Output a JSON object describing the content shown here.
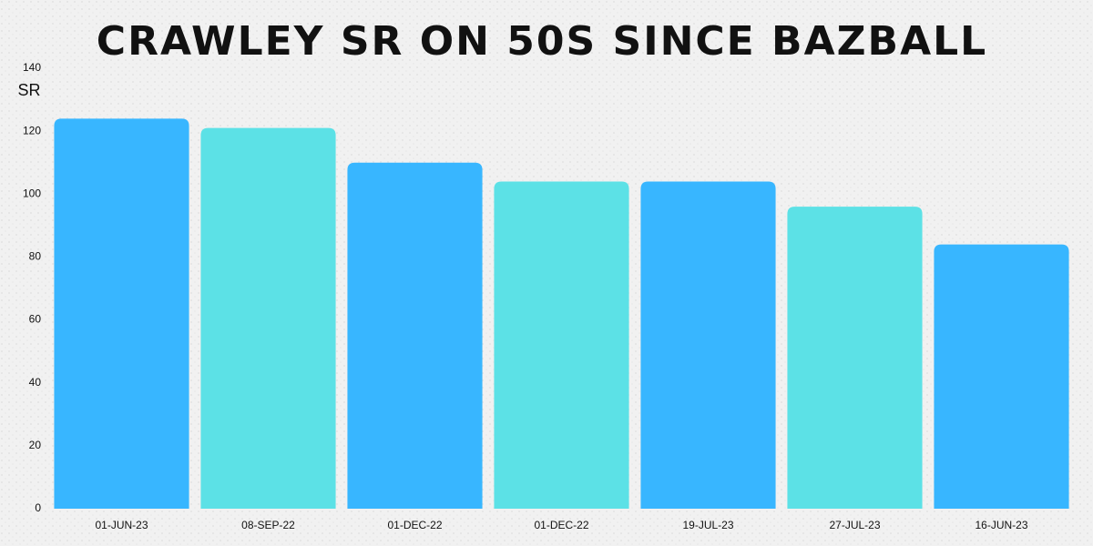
{
  "chart_data": {
    "type": "bar",
    "title": "CRAWLEY SR ON 50S SINCE BAZBALL",
    "y_label": "SR",
    "categories": [
      "01-JUN-23",
      "08-SEP-22",
      "01-DEC-22",
      "01-DEC-22",
      "19-JUL-23",
      "27-JUL-23",
      "16-JUN-23"
    ],
    "values": [
      124,
      121,
      110,
      104,
      104,
      96,
      84
    ],
    "colors": [
      "#38b6ff",
      "#5ce1e6",
      "#38b6ff",
      "#5ce1e6",
      "#38b6ff",
      "#5ce1e6",
      "#38b6ff"
    ],
    "ylim": [
      0,
      140
    ],
    "yticks": [
      0,
      20,
      40,
      60,
      80,
      100,
      120,
      140
    ],
    "grid": false
  }
}
